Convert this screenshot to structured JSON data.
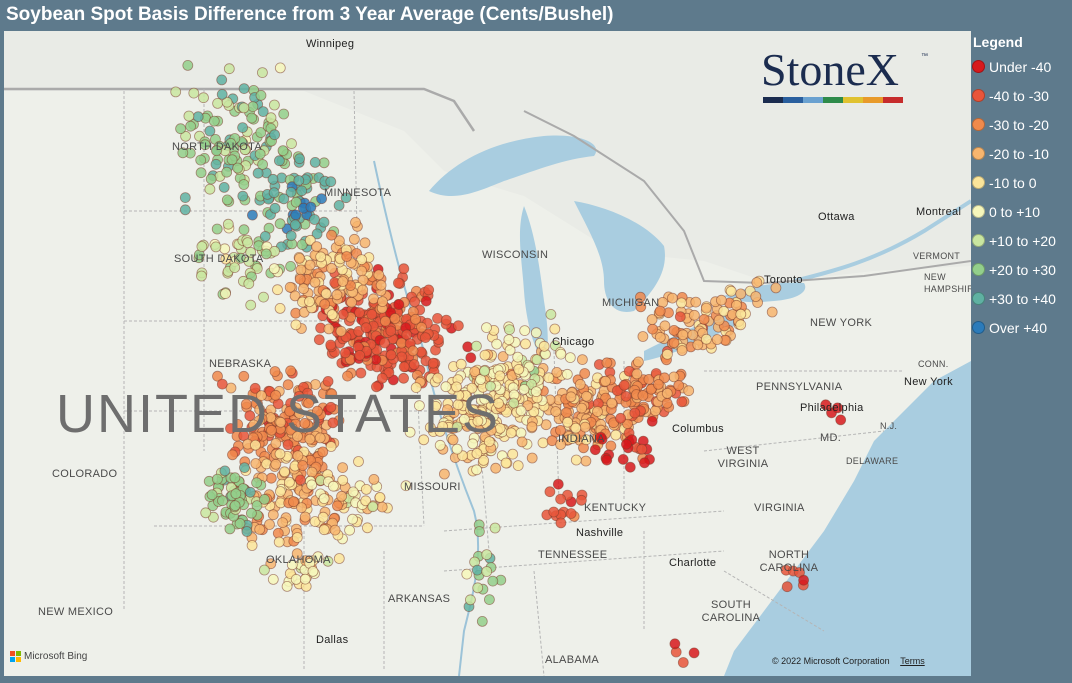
{
  "title": "Soybean Spot Basis Difference from 3 Year Average (Cents/Bushel)",
  "legend": {
    "title": "Legend",
    "items": [
      {
        "label": "Under -40",
        "color": "#d7191c"
      },
      {
        "label": "-40 to -30",
        "color": "#e8553a"
      },
      {
        "label": "-30 to -20",
        "color": "#f08a4c"
      },
      {
        "label": "-20 to -10",
        "color": "#f7b56e"
      },
      {
        "label": "-10 to 0",
        "color": "#fbe59a"
      },
      {
        "label": "0 to +10",
        "color": "#f6f7bb"
      },
      {
        "label": "+10 to +20",
        "color": "#c9e6a0"
      },
      {
        "label": "+20 to +30",
        "color": "#93cf8b"
      },
      {
        "label": "+30 to +40",
        "color": "#5fb1a2"
      },
      {
        "label": "Over +40",
        "color": "#2b7bba"
      }
    ]
  },
  "logo": {
    "text": "StoneX",
    "tm": "™",
    "bar_colors": [
      "#1b2c4f",
      "#2a5f9e",
      "#6aa1d0",
      "#2e8b4a",
      "#e0c230",
      "#e89a2a",
      "#c62c2c"
    ]
  },
  "map_labels": {
    "big_label": "UNITED STATES",
    "states": [
      "NORTH DAKOTA",
      "MINNESOTA",
      "SOUTH DAKOTA",
      "NEBRASKA",
      "COLORADO",
      "MISSOURI",
      "KENTUCKY",
      "TENNESSEE",
      "OKLAHOMA",
      "ARKANSAS",
      "NEW MEXICO",
      "ALABAMA",
      "WEST VIRGINIA",
      "VIRGINIA",
      "PENNSYLVANIA",
      "NEW YORK",
      "NORTH CAROLINA",
      "SOUTH CAROLINA",
      "MICHIGAN",
      "WISCONSIN",
      "INDIANA",
      "MD.",
      "N.J.",
      "DELAWARE",
      "VERMONT",
      "NEW HAMPSHIRE",
      "CONN."
    ],
    "cities": [
      "Winnipeg",
      "Ottawa",
      "Montreal",
      "Chicago",
      "New York",
      "Philadelphia",
      "Columbus",
      "Nashville",
      "Charlotte",
      "Dallas",
      "Toronto"
    ]
  },
  "attribution": {
    "bing": "Microsoft Bing",
    "copyright": "© 2022 Microsoft Corporation",
    "terms": "Terms"
  }
}
